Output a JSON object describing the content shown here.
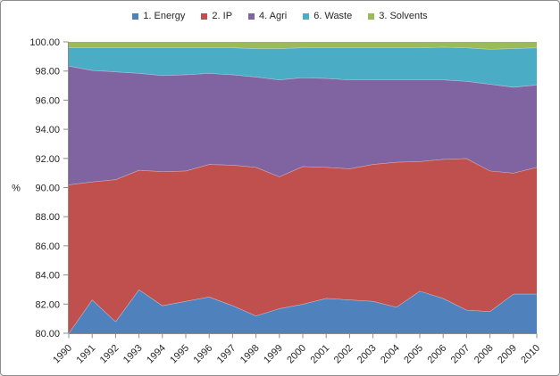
{
  "frame": {
    "background": "#ffffff",
    "border_color": "#8d8d8d"
  },
  "chart_data": {
    "type": "area",
    "stacked": true,
    "percent_stacked": true,
    "title": "",
    "xlabel": "",
    "ylabel": "%",
    "ylim": [
      80,
      100
    ],
    "ytick_labels": [
      "100.00",
      "98.00",
      "96.00",
      "94.00",
      "92.00",
      "90.00",
      "88.00",
      "86.00",
      "84.00",
      "82.00",
      "80.00"
    ],
    "categories": [
      "1990",
      "1991",
      "1992",
      "1993",
      "1994",
      "1995",
      "1996",
      "1997",
      "1998",
      "1999",
      "2000",
      "2001",
      "2002",
      "2003",
      "2004",
      "2005",
      "2006",
      "2007",
      "2008",
      "2009",
      "2010"
    ],
    "legend_position": "top",
    "grid": false,
    "axis_color": "#8c8c8c",
    "text_color": "#262626",
    "boundary_line_color": "rgba(255,255,255,0.55)",
    "series": [
      {
        "name": "1. Energy",
        "color": "#4F81BD",
        "values": [
          80.0,
          82.3,
          80.8,
          83.0,
          81.9,
          82.2,
          82.5,
          81.9,
          81.2,
          81.7,
          82.0,
          82.4,
          82.3,
          82.2,
          81.8,
          82.9,
          82.4,
          81.6,
          81.5,
          82.7,
          82.7
        ]
      },
      {
        "name": "2. IP",
        "color": "#C0504D",
        "values": [
          10.2,
          8.1,
          9.75,
          8.2,
          9.2,
          8.95,
          9.1,
          9.65,
          10.2,
          9.05,
          9.45,
          9.0,
          9.0,
          9.4,
          9.95,
          8.9,
          9.55,
          10.4,
          9.65,
          8.3,
          8.7
        ]
      },
      {
        "name": "4. Agri",
        "color": "#8064A2",
        "values": [
          8.15,
          7.65,
          7.4,
          6.65,
          6.6,
          6.6,
          6.25,
          6.2,
          6.2,
          6.65,
          6.1,
          6.1,
          6.1,
          5.8,
          5.65,
          5.6,
          5.45,
          5.3,
          5.95,
          5.9,
          5.65
        ]
      },
      {
        "name": "6. Waste",
        "color": "#4BACC6",
        "values": [
          1.25,
          1.55,
          1.65,
          1.75,
          1.9,
          1.85,
          1.75,
          1.85,
          1.95,
          2.15,
          2.05,
          2.1,
          2.2,
          2.2,
          2.2,
          2.2,
          2.25,
          2.3,
          2.4,
          2.65,
          2.55
        ]
      },
      {
        "name": "3. Solvents",
        "color": "#9BBB59",
        "values": [
          0.4,
          0.4,
          0.4,
          0.4,
          0.4,
          0.4,
          0.4,
          0.4,
          0.45,
          0.45,
          0.4,
          0.4,
          0.4,
          0.4,
          0.4,
          0.4,
          0.35,
          0.4,
          0.5,
          0.45,
          0.4
        ]
      }
    ]
  }
}
